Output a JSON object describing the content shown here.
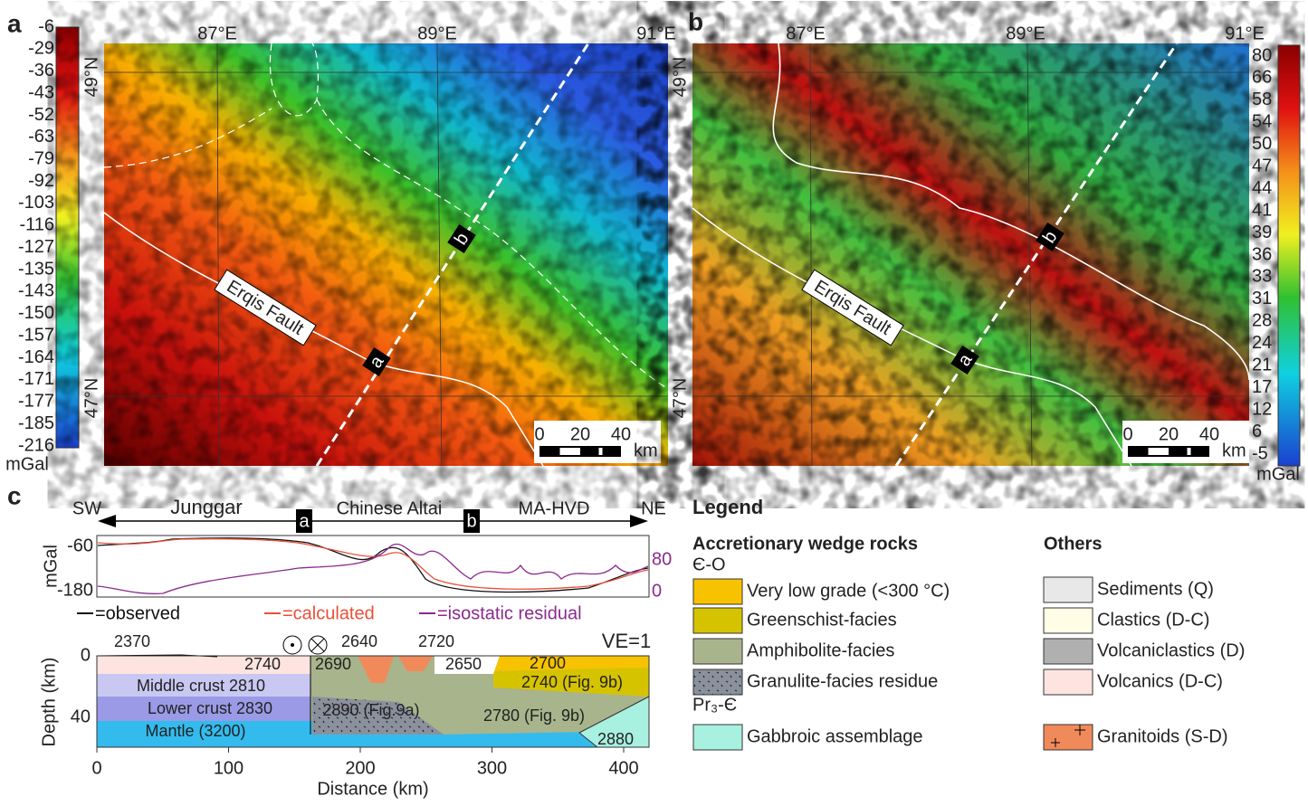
{
  "panel_a": {
    "label": "a",
    "colorbar": [
      -6,
      -29,
      -36,
      -43,
      -52,
      -63,
      -79,
      -92,
      -103,
      -116,
      -127,
      -135,
      -143,
      -150,
      -157,
      -164,
      -171,
      -177,
      -185,
      -216
    ],
    "unit": "mGal",
    "lon_labels": [
      "87°E",
      "89°E",
      "91°E"
    ],
    "lat_labels": [
      "49°N",
      "47°N"
    ],
    "fault_label": "Erqis Fault",
    "points": [
      "a",
      "b"
    ],
    "scale_ticks": [
      0,
      20,
      40
    ],
    "scale_unit": "km"
  },
  "panel_b": {
    "label": "b",
    "colorbar": [
      80,
      66,
      58,
      54,
      50,
      47,
      44,
      41,
      39,
      36,
      33,
      31,
      28,
      24,
      21,
      17,
      12,
      6,
      -5
    ],
    "unit": "mGal",
    "lon_labels": [
      "87°E",
      "89°E",
      "91°E"
    ],
    "lat_labels": [
      "49°N",
      "47°N"
    ],
    "fault_label": "Erqis Fault",
    "points": [
      "a",
      "b"
    ],
    "scale_ticks": [
      0,
      20,
      40
    ],
    "scale_unit": "km"
  },
  "panel_c": {
    "label": "c",
    "ends": [
      "SW",
      "NE"
    ],
    "regions": [
      "Junggar",
      "Chinese Altai",
      "MA-HVD"
    ],
    "points": [
      "a",
      "b"
    ],
    "gravity": {
      "unit": "mGal",
      "left_ticks": [
        -60,
        -180
      ],
      "right_ticks": [
        80,
        0
      ],
      "legend": [
        "=observed",
        "=calculated",
        "=isostatic residual"
      ],
      "legend_colors": [
        "#111111",
        "#e8503a",
        "#8b2a8f"
      ]
    },
    "section": {
      "ve": "VE=1",
      "surface_values": [
        2370,
        2740,
        2690,
        2640,
        2720,
        2650,
        2700
      ],
      "layers": [
        "Middle crust 2810",
        "Lower crust 2830",
        "Mantle (3200)",
        "2890 (Fig.9a)",
        "2780 (Fig. 9b)",
        "2740 (Fig. 9b)"
      ],
      "gabbro_value": 2880,
      "depth_label": "Depth (km)",
      "depth_ticks": [
        0,
        40
      ],
      "distance_label": "Distance (km)",
      "distance_ticks": [
        0,
        100,
        200,
        300,
        400
      ]
    }
  },
  "legend": {
    "title": "Legend",
    "accretionary": {
      "heading": "Accretionary wedge rocks",
      "age": "Є-O",
      "items": [
        "Very low grade (<300 °C)",
        "Greenschist-facies",
        "Amphibolite-facies",
        "Granulite-facies residue"
      ],
      "colors": [
        "#f7c200",
        "#d6c300",
        "#a8b48c",
        "#8a909c"
      ]
    },
    "ophiolite": {
      "age": "Pr₃-Є",
      "items": [
        "Gabbroic assemblage"
      ],
      "colors": [
        "#a8f0e0"
      ]
    },
    "others": {
      "heading": "Others",
      "items": [
        "Sediments (Q)",
        "Clastics (D-C)",
        "Volcaniclastics (D)",
        "Volcanics (D-C)",
        "Granitoids (S-D)"
      ],
      "colors": [
        "#e8e8e8",
        "#fffde6",
        "#b0b0b0",
        "#fde4e0",
        "#f08a5a"
      ]
    }
  }
}
